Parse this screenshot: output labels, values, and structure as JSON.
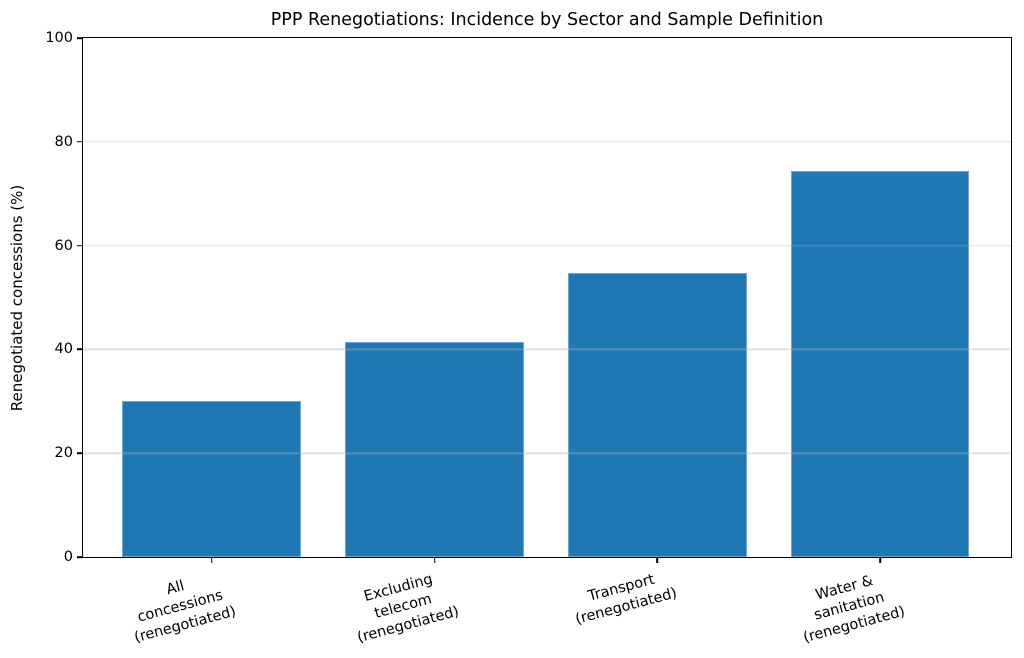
{
  "chart_data": {
    "type": "bar",
    "title": "PPP Renegotiations: Incidence by Sector and Sample Definition",
    "ylabel": "Renegotiated concessions (%)",
    "xlabel": "",
    "categories": [
      "All concessions\n(renegotiated)",
      "Excluding telecom\n(renegotiated)",
      "Transport\n(renegotiated)",
      "Water & sanitation\n(renegotiated)"
    ],
    "values": [
      30,
      41.5,
      54.7,
      74.4
    ],
    "ylim": [
      0,
      100
    ],
    "yticks": [
      0,
      20,
      40,
      60,
      80,
      100
    ],
    "bar_color": "#1f77b4",
    "grid": true,
    "grid_color": "#b0b0b0",
    "legend_position": "none"
  }
}
